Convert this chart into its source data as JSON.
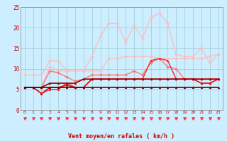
{
  "x": [
    0,
    1,
    2,
    3,
    4,
    5,
    6,
    7,
    8,
    9,
    10,
    11,
    12,
    13,
    14,
    15,
    16,
    17,
    18,
    19,
    20,
    21,
    22,
    23
  ],
  "lines": [
    {
      "y": [
        8.5,
        8.5,
        8.5,
        12.0,
        12.0,
        9.5,
        9.5,
        9.5,
        13.0,
        18.0,
        21.0,
        21.0,
        16.5,
        20.5,
        17.5,
        22.5,
        23.5,
        21.0,
        13.5,
        13.0,
        13.0,
        15.0,
        11.5,
        13.5
      ],
      "color": "#ffbbbb",
      "lw": 0.9,
      "marker": "D",
      "ms": 2.0
    },
    {
      "y": [
        5.5,
        5.5,
        5.5,
        10.5,
        9.5,
        9.5,
        9.5,
        9.5,
        9.5,
        9.5,
        12.5,
        12.5,
        13.0,
        13.0,
        13.0,
        13.0,
        12.5,
        12.5,
        12.5,
        12.5,
        12.5,
        12.5,
        13.0,
        13.5
      ],
      "color": "#ffbbbb",
      "lw": 0.9,
      "marker": "D",
      "ms": 2.0
    },
    {
      "y": [
        5.5,
        5.5,
        5.5,
        9.5,
        9.0,
        8.0,
        7.0,
        7.5,
        8.5,
        8.5,
        8.5,
        8.5,
        8.5,
        9.5,
        8.5,
        11.5,
        12.5,
        10.5,
        10.0,
        7.5,
        7.5,
        6.5,
        6.5,
        7.5
      ],
      "color": "#ff7777",
      "lw": 1.0,
      "marker": "D",
      "ms": 2.0
    },
    {
      "y": [
        5.5,
        5.5,
        4.0,
        5.0,
        5.0,
        6.5,
        5.5,
        5.5,
        7.5,
        7.5,
        7.5,
        7.5,
        7.5,
        7.5,
        7.5,
        12.0,
        12.5,
        12.0,
        7.5,
        7.5,
        7.5,
        7.5,
        7.5,
        7.5
      ],
      "color": "#ff2222",
      "lw": 1.0,
      "marker": "^",
      "ms": 2.0
    },
    {
      "y": [
        5.5,
        5.5,
        4.0,
        5.5,
        5.5,
        6.0,
        5.5,
        5.5,
        7.5,
        7.5,
        7.5,
        7.5,
        7.5,
        7.5,
        7.5,
        7.5,
        7.5,
        7.5,
        7.5,
        7.5,
        7.5,
        6.5,
        6.5,
        7.5
      ],
      "color": "#dd0000",
      "lw": 1.0,
      "marker": "^",
      "ms": 2.0
    },
    {
      "y": [
        5.5,
        5.5,
        5.5,
        6.5,
        6.5,
        6.5,
        6.5,
        7.5,
        7.5,
        7.5,
        7.5,
        7.5,
        7.5,
        7.5,
        7.5,
        7.5,
        7.5,
        7.5,
        7.5,
        7.5,
        7.5,
        7.5,
        7.5,
        7.5
      ],
      "color": "#990000",
      "lw": 1.2,
      "marker": "^",
      "ms": 2.0
    },
    {
      "y": [
        5.5,
        5.5,
        5.5,
        5.5,
        5.5,
        5.5,
        5.5,
        5.5,
        5.5,
        5.5,
        5.5,
        5.5,
        5.5,
        5.5,
        5.5,
        5.5,
        5.5,
        5.5,
        5.5,
        5.5,
        5.5,
        5.5,
        5.5,
        5.5
      ],
      "color": "#660000",
      "lw": 1.2,
      "marker": "^",
      "ms": 2.0
    }
  ],
  "xlabel": "Vent moyen/en rafales ( km/h )",
  "xlim_lo": -0.5,
  "xlim_hi": 23.5,
  "ylim": [
    0,
    25
  ],
  "yticks": [
    0,
    5,
    10,
    15,
    20,
    25
  ],
  "xticks": [
    0,
    1,
    2,
    3,
    4,
    5,
    6,
    7,
    8,
    9,
    10,
    11,
    12,
    13,
    14,
    15,
    16,
    17,
    18,
    19,
    20,
    21,
    22,
    23
  ],
  "bg_color": "#cceeff",
  "grid_color": "#99cccc",
  "xlabel_color": "#cc0000",
  "tick_color": "#cc0000",
  "arrow_color": "#ff4444"
}
